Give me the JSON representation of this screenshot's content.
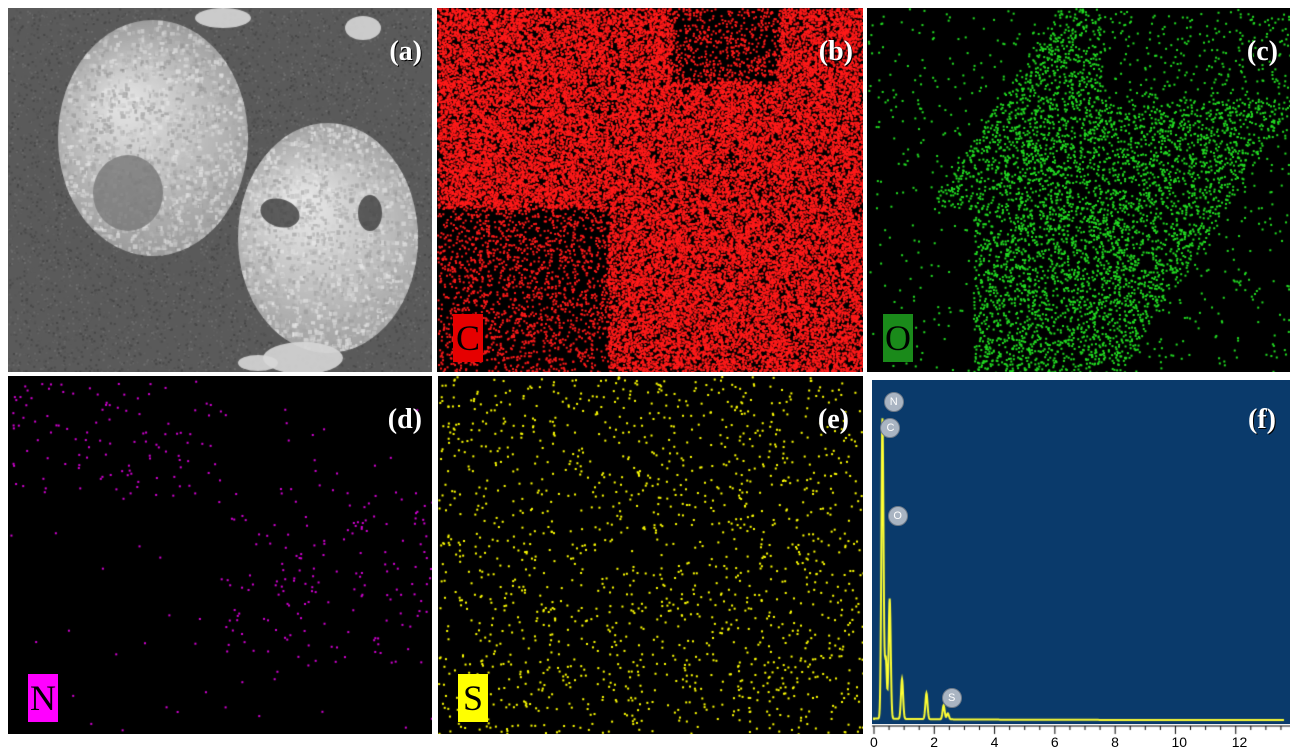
{
  "panels": [
    {
      "id": "a",
      "label": "(a)",
      "kind": "sem"
    },
    {
      "id": "b",
      "label": "(b)",
      "kind": "map",
      "element": "C",
      "color": "#ff1a1a",
      "box_color": "#e60000"
    },
    {
      "id": "c",
      "label": "(c)",
      "kind": "map",
      "element": "O",
      "color": "#22dd22",
      "box_color": "#1a8a1a"
    },
    {
      "id": "d",
      "label": "(d)",
      "kind": "map",
      "element": "N",
      "color": "#d400d4",
      "box_color": "#ff00ff"
    },
    {
      "id": "e",
      "label": "(e)",
      "kind": "map",
      "element": "S",
      "color": "#ffff00",
      "box_color": "#ffff00"
    },
    {
      "id": "f",
      "label": "(f)",
      "kind": "spectrum"
    }
  ],
  "spectrum": {
    "background": "#0a3a6b",
    "trace_color": "#ffff33",
    "x_ticks": [
      "0",
      "2",
      "4",
      "6",
      "8",
      "10",
      "12"
    ],
    "peaks": [
      {
        "label": "N",
        "energy": 0.39
      },
      {
        "label": "C",
        "energy": 0.28
      },
      {
        "label": "O",
        "energy": 0.52
      },
      {
        "label": "S",
        "energy": 2.31
      }
    ]
  }
}
